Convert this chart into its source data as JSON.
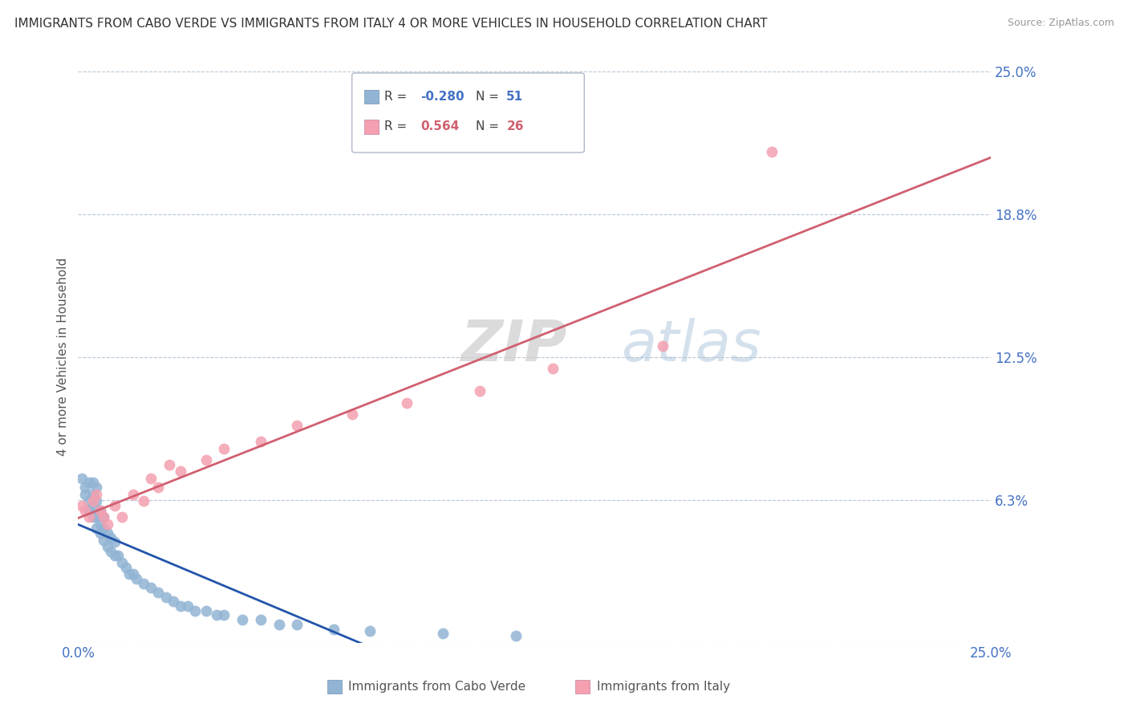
{
  "title": "IMMIGRANTS FROM CABO VERDE VS IMMIGRANTS FROM ITALY 4 OR MORE VEHICLES IN HOUSEHOLD CORRELATION CHART",
  "source": "Source: ZipAtlas.com",
  "ylabel": "4 or more Vehicles in Household",
  "xmin": 0.0,
  "xmax": 0.25,
  "ymin": 0.0,
  "ymax": 0.25,
  "ytick_vals": [
    0.0,
    0.0625,
    0.125,
    0.1875,
    0.25
  ],
  "ytick_labels": [
    "",
    "6.3%",
    "12.5%",
    "18.8%",
    "25.0%"
  ],
  "xtick_vals": [
    0.0,
    0.25
  ],
  "xtick_labels": [
    "0.0%",
    "25.0%"
  ],
  "r_cabo_verde": -0.28,
  "n_cabo_verde": 51,
  "r_italy": 0.564,
  "n_italy": 26,
  "color_cabo_verde": "#92b4d4",
  "color_italy": "#f4a0b0",
  "line_color_cabo_verde": "#2255aa",
  "line_color_italy": "#d06070",
  "watermark_zip": "ZIP",
  "watermark_atlas": "atlas",
  "cabo_verde_x": [
    0.001,
    0.002,
    0.002,
    0.003,
    0.003,
    0.003,
    0.004,
    0.004,
    0.004,
    0.004,
    0.005,
    0.005,
    0.005,
    0.005,
    0.006,
    0.006,
    0.006,
    0.007,
    0.007,
    0.007,
    0.008,
    0.008,
    0.009,
    0.009,
    0.01,
    0.01,
    0.011,
    0.012,
    0.013,
    0.014,
    0.015,
    0.016,
    0.018,
    0.02,
    0.022,
    0.024,
    0.026,
    0.028,
    0.03,
    0.032,
    0.035,
    0.038,
    0.04,
    0.045,
    0.05,
    0.055,
    0.06,
    0.07,
    0.08,
    0.1,
    0.12
  ],
  "cabo_verde_y": [
    0.072,
    0.065,
    0.068,
    0.058,
    0.062,
    0.07,
    0.055,
    0.06,
    0.065,
    0.07,
    0.05,
    0.055,
    0.062,
    0.068,
    0.048,
    0.052,
    0.058,
    0.045,
    0.05,
    0.055,
    0.042,
    0.048,
    0.04,
    0.046,
    0.038,
    0.044,
    0.038,
    0.035,
    0.033,
    0.03,
    0.03,
    0.028,
    0.026,
    0.024,
    0.022,
    0.02,
    0.018,
    0.016,
    0.016,
    0.014,
    0.014,
    0.012,
    0.012,
    0.01,
    0.01,
    0.008,
    0.008,
    0.006,
    0.005,
    0.004,
    0.003
  ],
  "italy_x": [
    0.001,
    0.002,
    0.003,
    0.004,
    0.005,
    0.006,
    0.007,
    0.008,
    0.01,
    0.012,
    0.015,
    0.018,
    0.02,
    0.022,
    0.025,
    0.028,
    0.035,
    0.04,
    0.05,
    0.06,
    0.075,
    0.09,
    0.11,
    0.13,
    0.16,
    0.19
  ],
  "italy_y": [
    0.06,
    0.058,
    0.055,
    0.062,
    0.065,
    0.058,
    0.055,
    0.052,
    0.06,
    0.055,
    0.065,
    0.062,
    0.072,
    0.068,
    0.078,
    0.075,
    0.08,
    0.085,
    0.088,
    0.095,
    0.1,
    0.105,
    0.11,
    0.12,
    0.13,
    0.215
  ]
}
